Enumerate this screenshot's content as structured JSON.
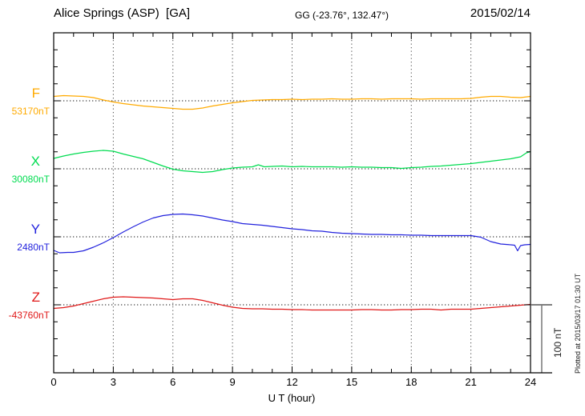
{
  "header": {
    "station": "Alice Springs (ASP)  [GA]",
    "coords": "GG (-23.76°, 132.47°)",
    "date": "2015/02/14"
  },
  "channels": [
    {
      "id": "F",
      "label": "F",
      "value_label": "53170nT",
      "color": "#FFAA00"
    },
    {
      "id": "X",
      "label": "X",
      "value_label": "30080nT",
      "color": "#00DC50"
    },
    {
      "id": "Y",
      "label": "Y",
      "value_label": "2480nT",
      "color": "#2222DD"
    },
    {
      "id": "Z",
      "label": "Z",
      "value_label": "-43760nT",
      "color": "#E01818"
    }
  ],
  "x_axis": {
    "ticks": [
      "0",
      "3",
      "6",
      "9",
      "12",
      "15",
      "18",
      "21",
      "24"
    ],
    "label": "U T (hour)"
  },
  "scale_bar": {
    "label": "100 nT",
    "value_nT": 100
  },
  "footer_note": "Plotted at 2015/03/17 01:30 UT",
  "chart_data": {
    "type": "line",
    "title": "Magnetogram Alice Springs (ASP) 2015/02/14",
    "xlabel": "U T (hour)",
    "x_range": [
      0,
      24
    ],
    "x_gridlines_hours": [
      3,
      6,
      9,
      12,
      15,
      18,
      21
    ],
    "y_division_nT": 25,
    "scale_reference_nT": 100,
    "grid": "dotted",
    "series": [
      {
        "name": "F",
        "baseline_nT": 53170,
        "color": "#FFAA00",
        "points": [
          [
            0,
            6.5
          ],
          [
            0.5,
            7.6
          ],
          [
            1,
            7.1
          ],
          [
            1.5,
            6.5
          ],
          [
            2,
            4.7
          ],
          [
            2.5,
            1.2
          ],
          [
            3,
            -1.8
          ],
          [
            3.5,
            -4.1
          ],
          [
            4,
            -5.9
          ],
          [
            4.5,
            -7.6
          ],
          [
            5,
            -8.8
          ],
          [
            5.5,
            -10
          ],
          [
            6,
            -11.2
          ],
          [
            6.5,
            -12.4
          ],
          [
            7,
            -12.4
          ],
          [
            7.5,
            -10.6
          ],
          [
            8,
            -7.6
          ],
          [
            8.5,
            -5.3
          ],
          [
            9,
            -2.9
          ],
          [
            9.5,
            -1.2
          ],
          [
            10,
            0.6
          ],
          [
            10.5,
            1.2
          ],
          [
            11,
            1.8
          ],
          [
            11.5,
            1.8
          ],
          [
            12,
            2.4
          ],
          [
            12.5,
            1.8
          ],
          [
            13,
            2.4
          ],
          [
            13.5,
            2.4
          ],
          [
            14,
            2.9
          ],
          [
            14.5,
            2.4
          ],
          [
            15,
            2.4
          ],
          [
            15.5,
            2.9
          ],
          [
            16,
            2.9
          ],
          [
            16.5,
            2.4
          ],
          [
            17,
            2.9
          ],
          [
            17.5,
            2.9
          ],
          [
            18,
            2.9
          ],
          [
            18.5,
            2.4
          ],
          [
            19,
            2.9
          ],
          [
            19.5,
            2.9
          ],
          [
            20,
            2.9
          ],
          [
            20.5,
            2.9
          ],
          [
            21,
            3.5
          ],
          [
            21.5,
            5.3
          ],
          [
            22,
            6.5
          ],
          [
            22.5,
            6.5
          ],
          [
            23,
            5.3
          ],
          [
            23.5,
            4.7
          ],
          [
            24,
            6.5
          ]
        ]
      },
      {
        "name": "X",
        "baseline_nT": 30080,
        "color": "#00DC50",
        "points": [
          [
            0,
            15.3
          ],
          [
            0.5,
            18.8
          ],
          [
            1,
            21.8
          ],
          [
            1.5,
            24.1
          ],
          [
            2,
            25.9
          ],
          [
            2.5,
            27.1
          ],
          [
            3,
            25.9
          ],
          [
            3.5,
            21.8
          ],
          [
            4,
            18.2
          ],
          [
            4.5,
            14.7
          ],
          [
            5,
            9.4
          ],
          [
            5.5,
            4.1
          ],
          [
            6,
            -0.6
          ],
          [
            6.5,
            -2.9
          ],
          [
            7,
            -4.1
          ],
          [
            7.5,
            -5.3
          ],
          [
            8,
            -4.1
          ],
          [
            8.5,
            -1.2
          ],
          [
            9,
            1.2
          ],
          [
            9.5,
            2.4
          ],
          [
            10,
            2.9
          ],
          [
            10.3,
            5.9
          ],
          [
            10.6,
            2.9
          ],
          [
            11,
            3.5
          ],
          [
            11.5,
            4.1
          ],
          [
            12,
            2.9
          ],
          [
            12.5,
            3.5
          ],
          [
            13,
            2.9
          ],
          [
            13.5,
            2.9
          ],
          [
            14,
            2.9
          ],
          [
            14.5,
            2.4
          ],
          [
            15,
            2.9
          ],
          [
            15.5,
            2.4
          ],
          [
            16,
            2.4
          ],
          [
            16.5,
            1.8
          ],
          [
            17,
            1.8
          ],
          [
            17.5,
            0.6
          ],
          [
            18,
            1.8
          ],
          [
            18.5,
            2.4
          ],
          [
            19,
            3.5
          ],
          [
            19.5,
            4.1
          ],
          [
            20,
            5.3
          ],
          [
            20.5,
            6.5
          ],
          [
            21,
            7.6
          ],
          [
            21.5,
            9.4
          ],
          [
            22,
            11.2
          ],
          [
            22.5,
            12.9
          ],
          [
            23,
            14.7
          ],
          [
            23.5,
            17.6
          ],
          [
            23.8,
            23.5
          ],
          [
            24,
            25.3
          ]
        ]
      },
      {
        "name": "Y",
        "baseline_nT": 2480,
        "color": "#2222DD",
        "points": [
          [
            0,
            -20
          ],
          [
            0.3,
            -23.5
          ],
          [
            0.7,
            -22.9
          ],
          [
            1,
            -22.9
          ],
          [
            1.5,
            -20.6
          ],
          [
            2,
            -15.3
          ],
          [
            2.5,
            -8.8
          ],
          [
            3,
            -1.2
          ],
          [
            3.5,
            7.1
          ],
          [
            4,
            14.7
          ],
          [
            4.5,
            21.8
          ],
          [
            5,
            27.6
          ],
          [
            5.5,
            31.2
          ],
          [
            6,
            32.9
          ],
          [
            6.5,
            33.5
          ],
          [
            7,
            32.4
          ],
          [
            7.5,
            30.6
          ],
          [
            8,
            27.6
          ],
          [
            8.5,
            24.7
          ],
          [
            9,
            22.4
          ],
          [
            9.5,
            19.4
          ],
          [
            10,
            18.2
          ],
          [
            10.5,
            17.1
          ],
          [
            11,
            15.3
          ],
          [
            11.5,
            13.5
          ],
          [
            12,
            11.8
          ],
          [
            12.5,
            10.6
          ],
          [
            13,
            8.8
          ],
          [
            13.5,
            8.2
          ],
          [
            14,
            6.5
          ],
          [
            14.5,
            5.3
          ],
          [
            15,
            4.7
          ],
          [
            15.5,
            4.1
          ],
          [
            16,
            3.5
          ],
          [
            16.5,
            3.5
          ],
          [
            17,
            2.9
          ],
          [
            17.5,
            2.9
          ],
          [
            18,
            2.4
          ],
          [
            18.5,
            2.4
          ],
          [
            19,
            1.8
          ],
          [
            19.5,
            1.8
          ],
          [
            20,
            1.8
          ],
          [
            20.5,
            1.8
          ],
          [
            21,
            1.8
          ],
          [
            21.5,
            -0.6
          ],
          [
            22,
            -7.1
          ],
          [
            22.5,
            -10.6
          ],
          [
            23,
            -11.8
          ],
          [
            23.2,
            -12.4
          ],
          [
            23.35,
            -20.6
          ],
          [
            23.5,
            -12.9
          ],
          [
            23.7,
            -11.8
          ],
          [
            24,
            -11.2
          ]
        ]
      },
      {
        "name": "Z",
        "baseline_nT": -43760,
        "color": "#E01818",
        "points": [
          [
            0,
            -5.3
          ],
          [
            0.5,
            -4.1
          ],
          [
            1,
            -1.8
          ],
          [
            1.5,
            1.8
          ],
          [
            2,
            5.3
          ],
          [
            2.5,
            8.8
          ],
          [
            3,
            11.2
          ],
          [
            3.5,
            11.8
          ],
          [
            4,
            11.2
          ],
          [
            4.5,
            10.6
          ],
          [
            5,
            10
          ],
          [
            5.5,
            8.8
          ],
          [
            6,
            7.6
          ],
          [
            6.5,
            8.8
          ],
          [
            7,
            8.8
          ],
          [
            7.5,
            6.5
          ],
          [
            8,
            2.9
          ],
          [
            8.5,
            -0.6
          ],
          [
            9,
            -3.5
          ],
          [
            9.5,
            -5.3
          ],
          [
            10,
            -5.9
          ],
          [
            10.5,
            -5.9
          ],
          [
            11,
            -6.5
          ],
          [
            11.5,
            -6.5
          ],
          [
            12,
            -7.1
          ],
          [
            12.5,
            -7.1
          ],
          [
            13,
            -7.6
          ],
          [
            13.5,
            -7.6
          ],
          [
            14,
            -7.6
          ],
          [
            14.5,
            -7.6
          ],
          [
            15,
            -7.6
          ],
          [
            15.5,
            -7.1
          ],
          [
            16,
            -7.1
          ],
          [
            16.5,
            -7.6
          ],
          [
            17,
            -7.6
          ],
          [
            17.5,
            -7.1
          ],
          [
            18,
            -7.1
          ],
          [
            18.5,
            -6.5
          ],
          [
            19,
            -6.5
          ],
          [
            19.5,
            -7.6
          ],
          [
            20,
            -6.5
          ],
          [
            20.5,
            -6.5
          ],
          [
            21,
            -6.5
          ],
          [
            21.5,
            -5.3
          ],
          [
            22,
            -4.1
          ],
          [
            22.5,
            -2.9
          ],
          [
            23,
            -1.8
          ],
          [
            23.5,
            -0.6
          ],
          [
            24,
            0.6
          ]
        ]
      }
    ]
  }
}
